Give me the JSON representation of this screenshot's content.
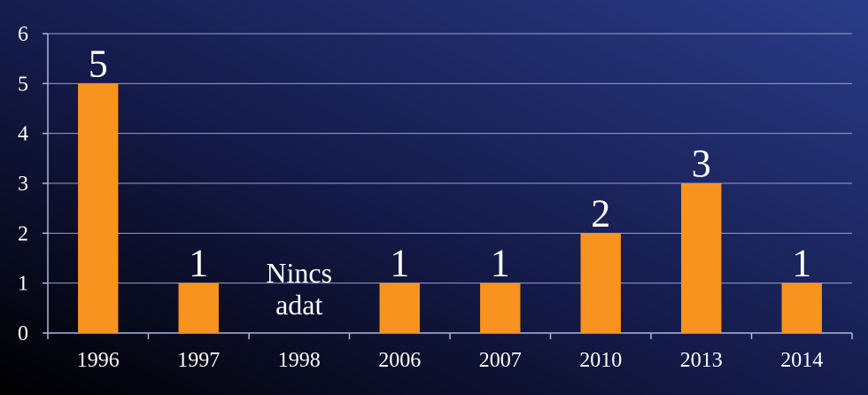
{
  "chart_data": {
    "type": "bar",
    "categories": [
      "1996",
      "1997",
      "1998",
      "2006",
      "2007",
      "2010",
      "2013",
      "2014"
    ],
    "values": [
      5,
      1,
      null,
      1,
      1,
      2,
      3,
      1
    ],
    "color": "#f7931e",
    "ylim": [
      0,
      6
    ],
    "yticks": [
      0,
      1,
      2,
      3,
      4,
      5,
      6
    ],
    "grid": true,
    "annotations": [
      {
        "x": "1998",
        "lines": [
          "Nincs",
          "adat"
        ]
      }
    ]
  }
}
